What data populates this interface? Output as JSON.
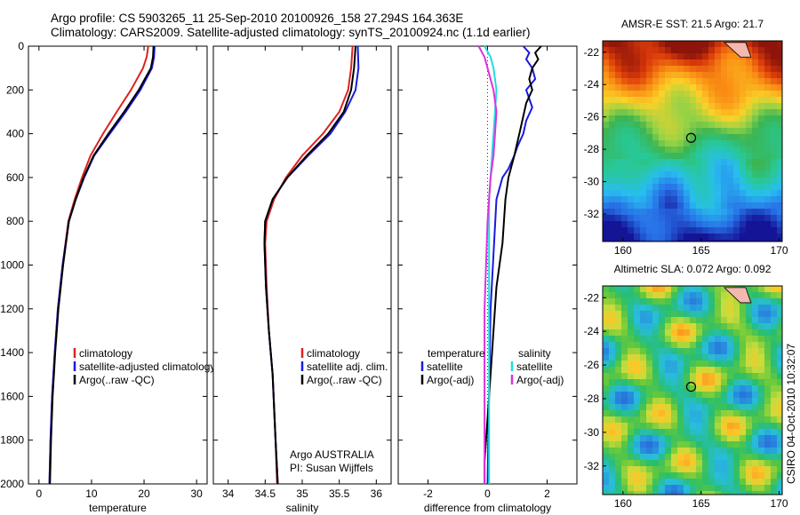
{
  "header": {
    "line1": "Argo profile: CS 5903265_11 25-Sep-2010 20100926_158 27.294S 164.363E",
    "line2": "Climatology: CARS2009. Satellite-adjusted climatology: synTS_20100924.nc (1.1d earlier)"
  },
  "side_label": "CSIRO 04-Oct-2010 10:32:07",
  "colors": {
    "climatology": "#dd2222",
    "satellite": "#1a1adf",
    "argo": "#000000",
    "sal_satellite": "#22dddd",
    "sal_argo": "#dd33dd"
  },
  "chart_data": [
    {
      "type": "line",
      "title": "",
      "xlabel": "temperature",
      "ylabel": "",
      "xlim": [
        -2,
        32
      ],
      "ylim": [
        2000,
        0
      ],
      "y_reversed": true,
      "xticks": [
        0,
        10,
        20,
        30
      ],
      "yticks": [
        0,
        200,
        400,
        600,
        800,
        1000,
        1200,
        1400,
        1600,
        1800,
        2000
      ],
      "legend": [
        "climatology",
        "satellite-adjusted climatology",
        "Argo(..raw -QC)"
      ],
      "series": [
        {
          "name": "climatology",
          "color_key": "climatology",
          "x": [
            20.8,
            20.5,
            19.8,
            17.5,
            14.8,
            12.2,
            9.8,
            8.2,
            6.8,
            5.6,
            4.5,
            3.6,
            3.0,
            2.5,
            2.2,
            2.0
          ],
          "y": [
            0,
            50,
            100,
            200,
            300,
            400,
            500,
            600,
            700,
            800,
            1000,
            1200,
            1400,
            1600,
            1800,
            2000
          ]
        },
        {
          "name": "satellite-adjusted climatology",
          "color_key": "satellite",
          "x": [
            22.0,
            21.9,
            21.5,
            19.3,
            16.5,
            13.5,
            10.5,
            8.6,
            7.0,
            5.7,
            4.5,
            3.6,
            3.0,
            2.5,
            2.2,
            2.0
          ],
          "y": [
            0,
            50,
            100,
            200,
            300,
            400,
            500,
            600,
            700,
            800,
            1000,
            1200,
            1400,
            1600,
            1800,
            2000
          ]
        },
        {
          "name": "Argo(..raw -QC)",
          "color_key": "argo",
          "x": [
            21.8,
            21.7,
            21.3,
            19.0,
            16.2,
            13.2,
            10.4,
            8.5,
            7.0,
            5.7,
            4.6,
            3.7,
            3.1,
            2.6,
            2.3,
            2.1
          ],
          "y": [
            0,
            50,
            100,
            200,
            300,
            400,
            500,
            600,
            700,
            800,
            1000,
            1200,
            1400,
            1600,
            1800,
            2000
          ]
        }
      ]
    },
    {
      "type": "line",
      "title": "",
      "xlabel": "salinity",
      "ylabel": "",
      "xlim": [
        33.8,
        36.2
      ],
      "ylim": [
        2000,
        0
      ],
      "y_reversed": true,
      "xticks": [
        34,
        34.5,
        35,
        35.5,
        36
      ],
      "annotations": [
        "Argo AUSTRALIA",
        "PI: Susan Wijffels"
      ],
      "legend": [
        "climatology",
        "satellite adj. clim.",
        "Argo(..raw -QC)"
      ],
      "series": [
        {
          "name": "climatology",
          "color_key": "climatology",
          "x": [
            35.68,
            35.66,
            35.62,
            35.5,
            35.28,
            35.0,
            34.78,
            34.62,
            34.52,
            34.5,
            34.52,
            34.55,
            34.6,
            34.64,
            34.66
          ],
          "y": [
            0,
            100,
            200,
            300,
            400,
            500,
            600,
            700,
            800,
            900,
            1100,
            1300,
            1500,
            1800,
            2000
          ]
        },
        {
          "name": "satellite adj. clim.",
          "color_key": "satellite",
          "x": [
            35.75,
            35.76,
            35.72,
            35.58,
            35.38,
            35.08,
            34.8,
            34.6,
            34.5,
            34.49,
            34.51,
            34.55,
            34.6,
            34.64,
            34.67
          ],
          "y": [
            0,
            100,
            200,
            300,
            400,
            500,
            600,
            700,
            800,
            900,
            1100,
            1300,
            1500,
            1800,
            2000
          ]
        },
        {
          "name": "Argo(..raw -QC)",
          "color_key": "argo",
          "x": [
            35.72,
            35.7,
            35.66,
            35.56,
            35.35,
            35.06,
            34.8,
            34.6,
            34.5,
            34.49,
            34.51,
            34.55,
            34.6,
            34.64,
            34.67
          ],
          "y": [
            0,
            100,
            200,
            300,
            400,
            500,
            600,
            700,
            800,
            900,
            1100,
            1300,
            1500,
            1800,
            2000
          ]
        }
      ]
    },
    {
      "type": "line",
      "title": "",
      "xlabel": "difference from climatology",
      "ylabel": "",
      "xlim": [
        -3,
        3
      ],
      "ylim": [
        2000,
        0
      ],
      "y_reversed": true,
      "xticks": [
        -2,
        0,
        2
      ],
      "legend_temperature": {
        "heading": "temperature",
        "items": [
          "satellite",
          "Argo(-adj)"
        ]
      },
      "legend_salinity": {
        "heading": "salinity",
        "items": [
          "satellite",
          "Argo(-adj)"
        ]
      },
      "series": [
        {
          "name": "temperature satellite",
          "color_key": "satellite",
          "x": [
            1.2,
            1.4,
            1.3,
            1.5,
            1.6,
            1.3,
            1.5,
            1.3,
            1.2,
            1.0,
            0.9,
            0.7,
            0.5,
            0.3,
            0.1,
            0.0
          ],
          "y": [
            0,
            30,
            60,
            100,
            150,
            200,
            280,
            340,
            400,
            460,
            500,
            560,
            600,
            700,
            1200,
            2000
          ]
        },
        {
          "name": "temperature Argo(-adj)",
          "color_key": "argo",
          "x": [
            1.8,
            1.6,
            1.7,
            1.5,
            1.4,
            1.5,
            1.3,
            1.2,
            1.1,
            1.0,
            0.9,
            0.7,
            0.6,
            0.5,
            0.3,
            0.2,
            0.1,
            0.0,
            -0.1,
            -0.1
          ],
          "y": [
            0,
            30,
            60,
            100,
            150,
            200,
            260,
            320,
            380,
            440,
            500,
            600,
            700,
            900,
            1100,
            1300,
            1500,
            1700,
            1900,
            2000
          ]
        },
        {
          "name": "salinity satellite",
          "color_key": "sal_satellite",
          "x": [
            -0.1,
            0.1,
            0.2,
            0.3,
            0.25,
            0.2,
            0.15,
            0.1,
            0.05,
            0.05,
            0.05,
            0.05,
            0.05,
            0.05,
            0.05
          ],
          "y": [
            0,
            50,
            100,
            200,
            300,
            400,
            500,
            600,
            700,
            800,
            1000,
            1200,
            1500,
            1800,
            2000
          ]
        },
        {
          "name": "salinity Argo(-adj)",
          "color_key": "sal_argo",
          "x": [
            -0.3,
            -0.1,
            0.0,
            0.2,
            0.3,
            0.25,
            0.2,
            0.1,
            0.05,
            0.0,
            -0.05,
            -0.1,
            -0.1,
            -0.1,
            -0.1
          ],
          "y": [
            0,
            50,
            100,
            200,
            300,
            400,
            500,
            600,
            700,
            800,
            1000,
            1200,
            1500,
            1800,
            2000
          ]
        }
      ]
    },
    {
      "type": "heatmap",
      "title": "AMSR-E SST: 21.5 Argo: 21.7",
      "xlim": [
        158.7,
        170.2
      ],
      "ylim": [
        -33.7,
        -21.3
      ],
      "xticks": [
        160,
        165,
        170
      ],
      "yticks": [
        -22,
        -24,
        -26,
        -28,
        -30,
        -32
      ],
      "marker": {
        "lon": 164.363,
        "lat": -27.294
      }
    },
    {
      "type": "heatmap",
      "title": "Altimetric SLA: 0.072 Argo: 0.092",
      "xlim": [
        158.7,
        170.2
      ],
      "ylim": [
        -33.7,
        -21.3
      ],
      "xticks": [
        160,
        165,
        170
      ],
      "yticks": [
        -22,
        -24,
        -26,
        -28,
        -30,
        -32
      ],
      "marker": {
        "lon": 164.363,
        "lat": -27.294
      }
    }
  ]
}
